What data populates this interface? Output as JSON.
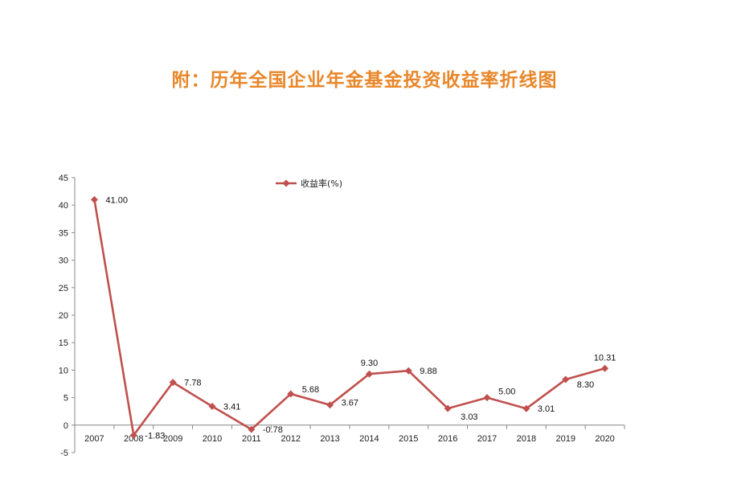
{
  "title": "附：历年全国企业年金基金投资收益率折线图",
  "chart_data": {
    "type": "line",
    "title": "附：历年全国企业年金基金投资收益率折线图",
    "xlabel": "",
    "ylabel": "",
    "categories": [
      "2007",
      "2008",
      "2009",
      "2010",
      "2011",
      "2012",
      "2013",
      "2014",
      "2015",
      "2016",
      "2017",
      "2018",
      "2019",
      "2020"
    ],
    "series": [
      {
        "name": "收益率(%)",
        "color": "#c0504d",
        "values": [
          41.0,
          -1.83,
          7.78,
          3.41,
          -0.78,
          5.68,
          3.67,
          9.3,
          9.88,
          3.03,
          5.0,
          3.01,
          8.3,
          10.31
        ],
        "labels": [
          "41.00",
          "-1.83",
          "7.78",
          "3.41",
          "-0.78",
          "5.68",
          "3.67",
          "9.30",
          "9.88",
          "3.03",
          "5.00",
          "3.01",
          "8.30",
          "10.31"
        ]
      }
    ],
    "ylim": [
      -5,
      45
    ],
    "yticks": [
      -5,
      0,
      5,
      10,
      15,
      20,
      25,
      30,
      35,
      40,
      45
    ],
    "grid": false,
    "legend": "top-center"
  }
}
